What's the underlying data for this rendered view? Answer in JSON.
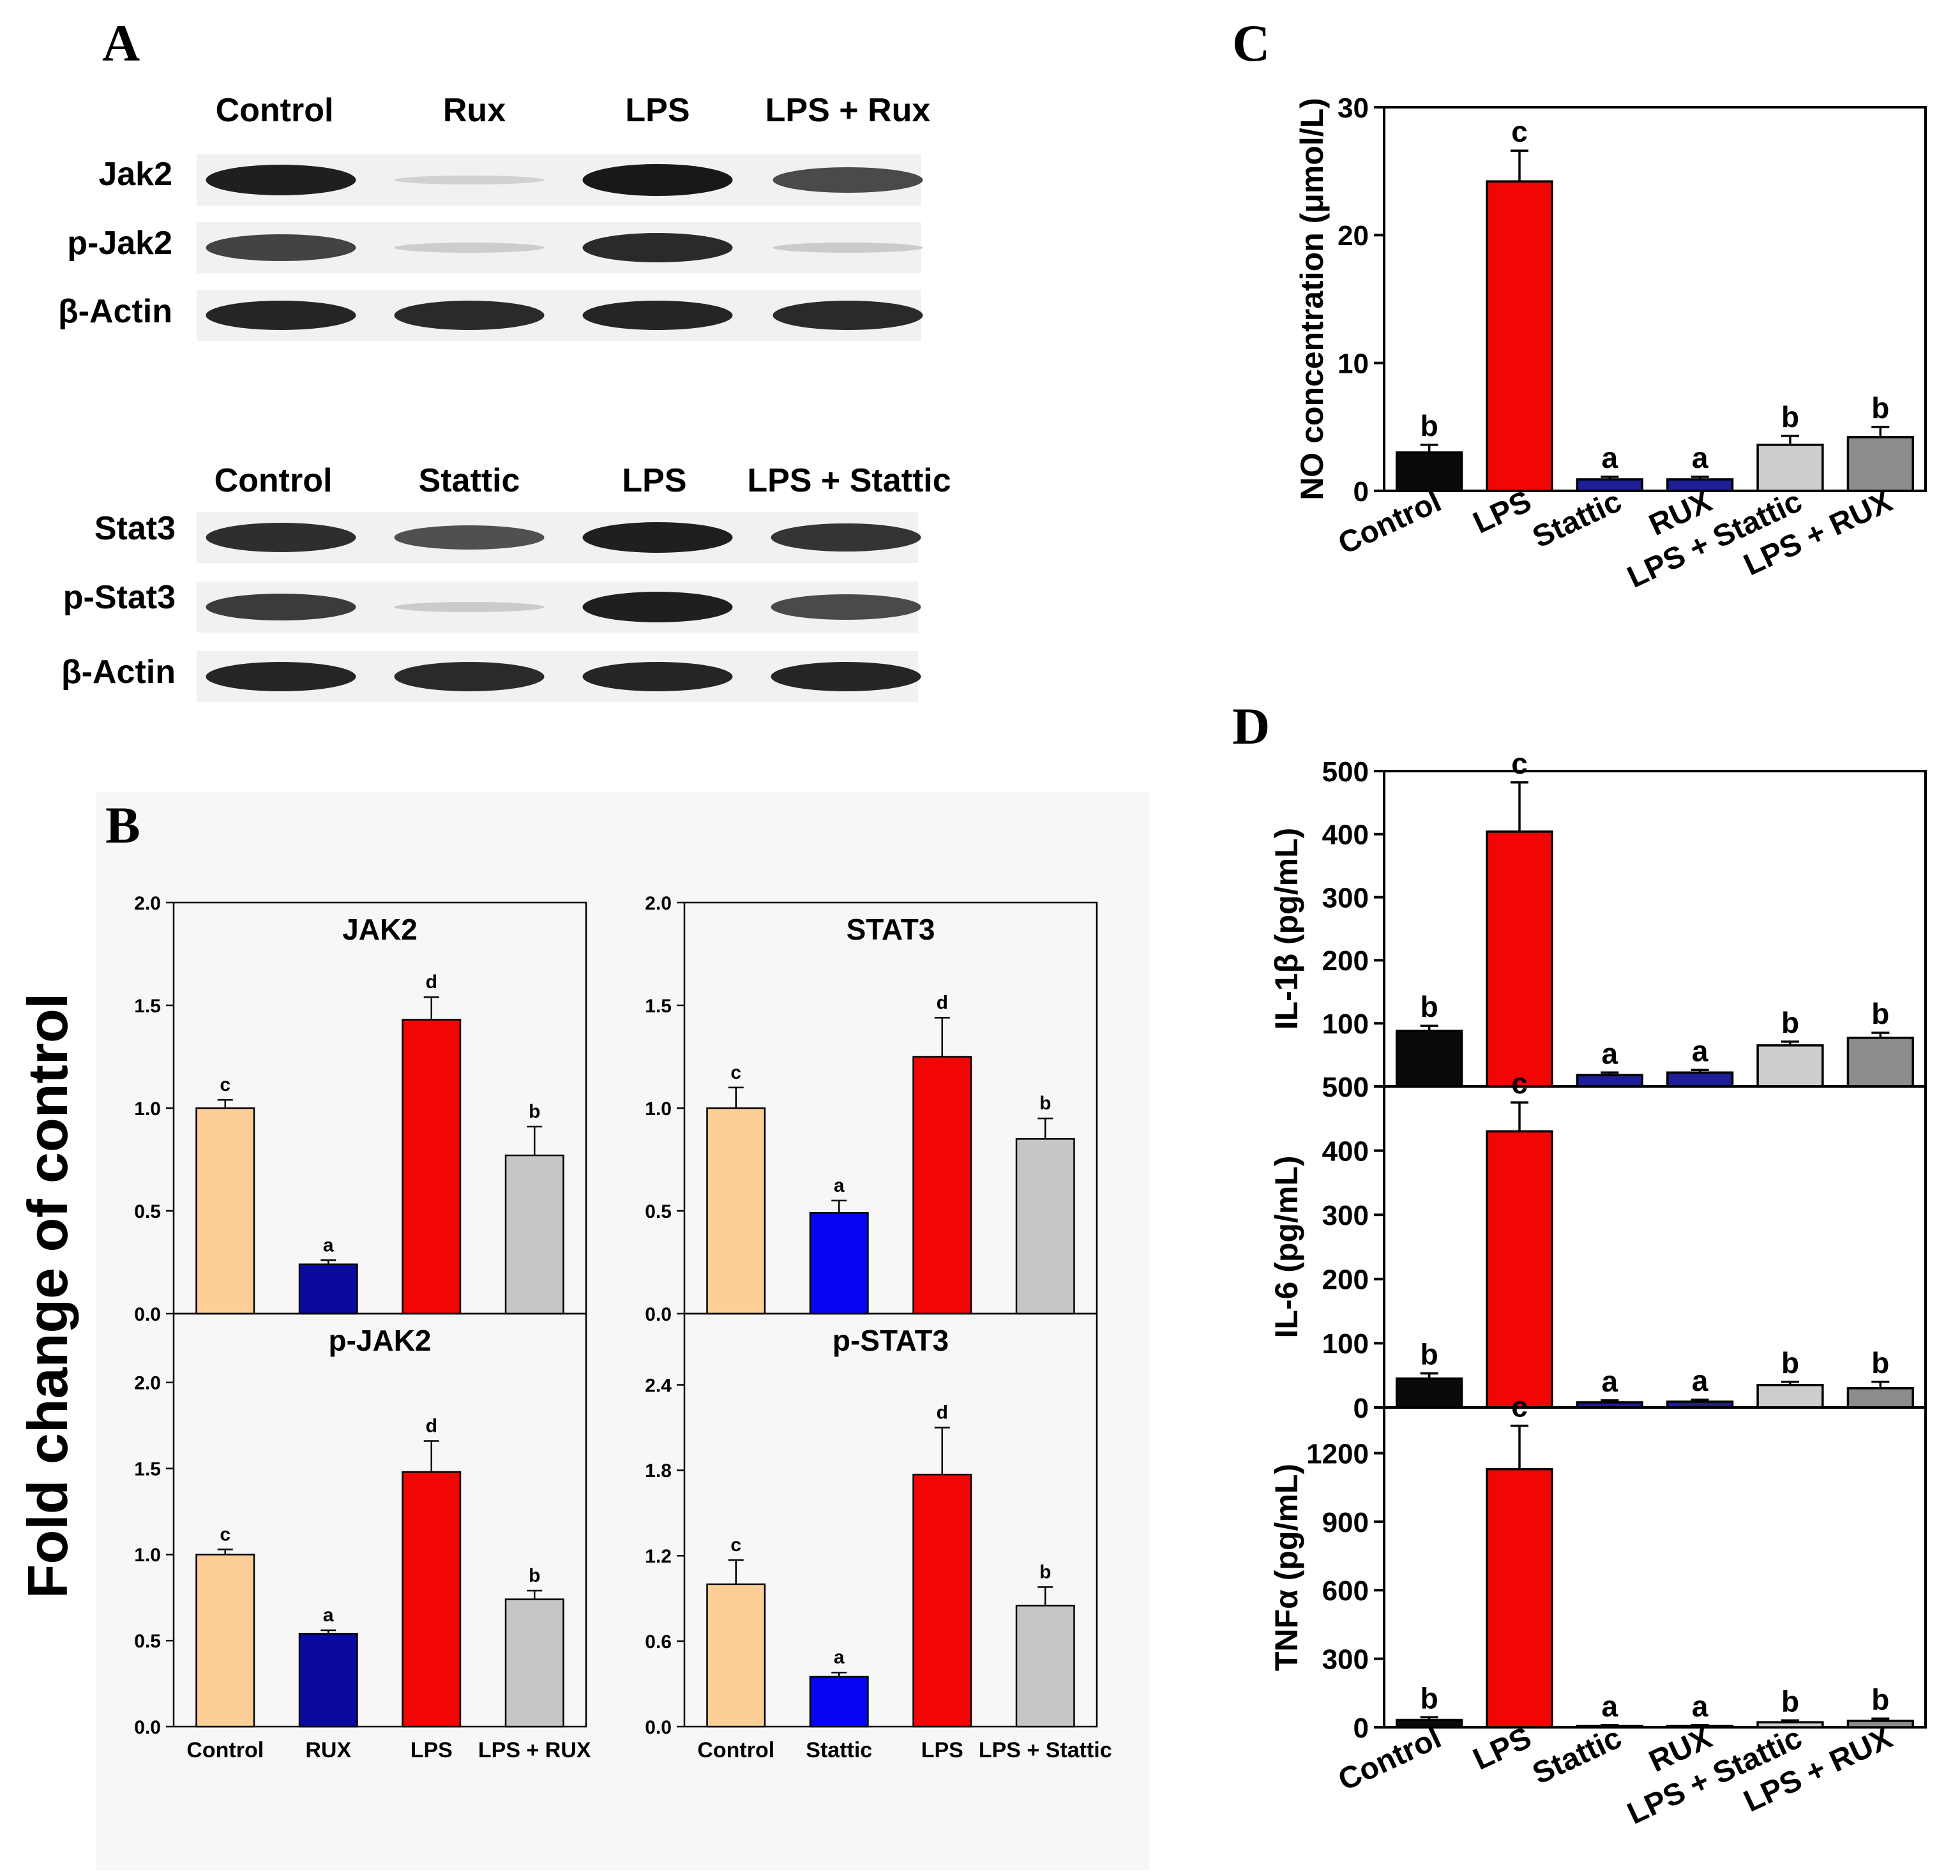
{
  "colors": {
    "control_b": "#FDCF96",
    "rux_b": "#0A0AA0",
    "stattic_b": "#0505F2",
    "lps": "#F20505",
    "combo_b": "#C6C6C6",
    "black": "#0A0A0A",
    "blue_cd": "#1E1E96",
    "lightgray_cd": "#CDCDCD",
    "darkgray_cd": "#8C8C8C"
  },
  "panel_labels": {
    "a": "A",
    "b": "B",
    "c": "C",
    "d": "D"
  },
  "blot_a": {
    "top": {
      "lanes": [
        "Control",
        "Rux",
        "LPS",
        "LPS + Rux"
      ],
      "rows": [
        {
          "label": "Jak2",
          "intensity": [
            0.95,
            0.12,
            0.98,
            0.75
          ]
        },
        {
          "label": "p-Jak2",
          "intensity": [
            0.78,
            0.14,
            0.9,
            0.15
          ]
        },
        {
          "label": "β-Actin",
          "intensity": [
            0.92,
            0.9,
            0.92,
            0.9
          ]
        }
      ]
    },
    "bottom": {
      "lanes": [
        "Control",
        "Stattic",
        "LPS",
        "LPS + Stattic"
      ],
      "rows": [
        {
          "label": "Stat3",
          "intensity": [
            0.88,
            0.72,
            0.95,
            0.85
          ]
        },
        {
          "label": "p-Stat3",
          "intensity": [
            0.82,
            0.15,
            0.95,
            0.75
          ]
        },
        {
          "label": "β-Actin",
          "intensity": [
            0.92,
            0.9,
            0.92,
            0.92
          ]
        }
      ]
    }
  },
  "fold_ylabel": "Fold change of control",
  "chart_data": [
    {
      "id": "jak2",
      "type": "bar",
      "title": "JAK2",
      "categories": [
        "Control",
        "RUX",
        "LPS",
        "LPS + RUX"
      ],
      "values": [
        1.0,
        0.24,
        1.43,
        0.77
      ],
      "errors": [
        0.04,
        0.02,
        0.11,
        0.14
      ],
      "letters": [
        "c",
        "a",
        "d",
        "b"
      ],
      "ylim": [
        0,
        2.0
      ],
      "yticks": [
        0.0,
        0.5,
        1.0,
        1.5,
        2.0
      ],
      "ytick_labels": [
        "0.0",
        "0.5",
        "1.0",
        "1.5",
        "2.0"
      ],
      "colors": [
        "#FDCF96",
        "#0A0AA0",
        "#F20505",
        "#C6C6C6"
      ]
    },
    {
      "id": "pjak2",
      "type": "bar",
      "title": "p-JAK2",
      "categories": [
        "Control",
        "RUX",
        "LPS",
        "LPS + RUX"
      ],
      "values": [
        1.0,
        0.54,
        1.48,
        0.74
      ],
      "errors": [
        0.03,
        0.02,
        0.18,
        0.05
      ],
      "letters": [
        "c",
        "a",
        "d",
        "b"
      ],
      "ylim": [
        0,
        2.4
      ],
      "yticks": [
        0.0,
        0.5,
        1.0,
        1.5,
        2.0
      ],
      "ytick_labels": [
        "0.0",
        "0.5",
        "1.0",
        "1.5",
        "2.0"
      ],
      "colors": [
        "#FDCF96",
        "#0A0AA0",
        "#F20505",
        "#C6C6C6"
      ]
    },
    {
      "id": "stat3",
      "type": "bar",
      "title": "STAT3",
      "categories": [
        "Control",
        "Stattic",
        "LPS",
        "LPS + Stattic"
      ],
      "values": [
        1.0,
        0.49,
        1.25,
        0.85
      ],
      "errors": [
        0.1,
        0.06,
        0.19,
        0.1
      ],
      "letters": [
        "c",
        "a",
        "d",
        "b"
      ],
      "ylim": [
        0,
        2.0
      ],
      "yticks": [
        0.0,
        0.5,
        1.0,
        1.5,
        2.0
      ],
      "ytick_labels": [
        "0.0",
        "0.5",
        "1.0",
        "1.5",
        "2.0"
      ],
      "colors": [
        "#FDCF96",
        "#0505F2",
        "#F20505",
        "#C6C6C6"
      ]
    },
    {
      "id": "pstat3",
      "type": "bar",
      "title": "p-STAT3",
      "categories": [
        "Control",
        "Stattic",
        "LPS",
        "LPS + Stattic"
      ],
      "values": [
        1.0,
        0.35,
        1.77,
        0.85
      ],
      "errors": [
        0.17,
        0.03,
        0.33,
        0.13
      ],
      "letters": [
        "c",
        "a",
        "d",
        "b"
      ],
      "ylim": [
        0,
        2.9
      ],
      "yticks": [
        0.0,
        0.6,
        1.2,
        1.8,
        2.4
      ],
      "ytick_labels": [
        "0.0",
        "0.6",
        "1.2",
        "1.8",
        "2.4"
      ],
      "colors": [
        "#FDCF96",
        "#0505F2",
        "#F20505",
        "#C6C6C6"
      ]
    },
    {
      "id": "no",
      "type": "bar",
      "title": "",
      "ylabel": "NO concentration (μmol/L)",
      "categories": [
        "Control",
        "LPS",
        "Stattic",
        "RUX",
        "LPS + Stattic",
        "LPS + RUX"
      ],
      "values": [
        3.0,
        24.2,
        0.9,
        0.9,
        3.6,
        4.2
      ],
      "errors": [
        0.6,
        2.4,
        0.2,
        0.2,
        0.7,
        0.8
      ],
      "letters": [
        "b",
        "c",
        "a",
        "a",
        "b",
        "b"
      ],
      "ylim": [
        0,
        30
      ],
      "yticks": [
        0,
        10,
        20,
        30
      ],
      "ytick_labels": [
        "0",
        "10",
        "20",
        "30"
      ],
      "colors": [
        "#0A0A0A",
        "#F20505",
        "#1E1E96",
        "#1E1E96",
        "#CDCDCD",
        "#8C8C8C"
      ]
    },
    {
      "id": "il1b",
      "type": "bar",
      "title": "",
      "ylabel": "IL-1β (pg/mL)",
      "categories": [
        "Control",
        "LPS",
        "Stattic",
        "RUX",
        "LPS + Stattic",
        "LPS + RUX"
      ],
      "values": [
        88,
        404,
        18,
        22,
        65,
        77
      ],
      "errors": [
        8,
        78,
        4,
        4,
        6,
        8
      ],
      "letters": [
        "b",
        "c",
        "a",
        "a",
        "b",
        "b"
      ],
      "ylim": [
        0,
        500
      ],
      "yticks": [
        0,
        100,
        200,
        300,
        400,
        500
      ],
      "ytick_labels": [
        "0",
        "100",
        "200",
        "300",
        "400",
        "500"
      ],
      "colors": [
        "#0A0A0A",
        "#F20505",
        "#1E1E96",
        "#1E1E96",
        "#CDCDCD",
        "#8C8C8C"
      ]
    },
    {
      "id": "il6",
      "type": "bar",
      "title": "",
      "ylabel": "IL-6 (pg/mL)",
      "categories": [
        "Control",
        "LPS",
        "Stattic",
        "RUX",
        "LPS + Stattic",
        "LPS + RUX"
      ],
      "values": [
        45,
        430,
        8,
        9,
        35,
        30
      ],
      "errors": [
        8,
        45,
        3,
        3,
        5,
        10
      ],
      "letters": [
        "b",
        "c",
        "a",
        "a",
        "b",
        "b"
      ],
      "ylim": [
        0,
        500
      ],
      "yticks": [
        0,
        100,
        200,
        300,
        400,
        500
      ],
      "ytick_labels": [
        "0",
        "100",
        "200",
        "300",
        "400",
        "500"
      ],
      "colors": [
        "#0A0A0A",
        "#F20505",
        "#1E1E96",
        "#1E1E96",
        "#CDCDCD",
        "#8C8C8C"
      ]
    },
    {
      "id": "tnfa",
      "type": "bar",
      "title": "",
      "ylabel": "TNFα (pg/mL)",
      "categories": [
        "Control",
        "LPS",
        "Stattic",
        "RUX",
        "LPS + Stattic",
        "LPS + RUX"
      ],
      "values": [
        32,
        1130,
        6,
        6,
        22,
        28
      ],
      "errors": [
        12,
        190,
        3,
        3,
        8,
        10
      ],
      "letters": [
        "b",
        "c",
        "a",
        "a",
        "b",
        "b"
      ],
      "ylim": [
        0,
        1400
      ],
      "yticks": [
        0,
        300,
        600,
        900,
        1200
      ],
      "ytick_labels": [
        "0",
        "300",
        "600",
        "900",
        "1200"
      ],
      "colors": [
        "#0A0A0A",
        "#F20505",
        "#1E1E96",
        "#1E1E96",
        "#CDCDCD",
        "#8C8C8C"
      ]
    }
  ]
}
